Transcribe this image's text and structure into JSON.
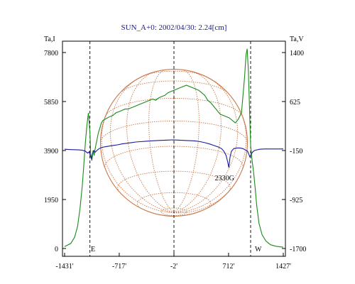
{
  "chart_data": {
    "type": "line",
    "title": "SUN_A+0: 2002/04/30: 2.24[cm]",
    "left_axis": {
      "label": "Ta,I",
      "ylim": [
        0,
        7800
      ],
      "ticks": [
        "7800",
        "5850",
        "3900",
        "1950",
        "0"
      ],
      "tick_values": [
        7800,
        5850,
        3900,
        1950,
        0
      ]
    },
    "right_axis": {
      "label": "Ta,V",
      "ylim": [
        -1700,
        1400
      ],
      "ticks": [
        "1400",
        "625",
        "-150",
        "-925",
        "-1700"
      ],
      "tick_values": [
        1400,
        625,
        -150,
        -925,
        -1700
      ]
    },
    "x_axis": {
      "xlim": [
        -1431,
        1427
      ],
      "ticks": [
        "-1431'",
        "-717'",
        "-2'",
        "712'",
        "1427'"
      ],
      "tick_values": [
        -1431,
        -717,
        -2,
        712,
        1427
      ]
    },
    "markers": {
      "east": "E",
      "west": "W"
    },
    "annotation": {
      "text": "2330G",
      "x": 690,
      "y_v": -420
    },
    "guides_x": [
      -1100,
      -2,
      1000
    ],
    "disk_radius": 960,
    "series": [
      {
        "axis": "left",
        "color": "#1a8a1a",
        "x": [
          -1431,
          -1350,
          -1300,
          -1260,
          -1230,
          -1200,
          -1180,
          -1160,
          -1140,
          -1120,
          -1100,
          -1090,
          -1075,
          -1060,
          -1045,
          -1030,
          -1010,
          -990,
          -970,
          -950,
          -930,
          -900,
          -870,
          -840,
          -800,
          -760,
          -720,
          -680,
          -640,
          -600,
          -560,
          -520,
          -480,
          -440,
          -400,
          -360,
          -320,
          -280,
          -240,
          -200,
          -160,
          -120,
          -80,
          -40,
          0,
          40,
          80,
          120,
          160,
          200,
          240,
          280,
          320,
          360,
          400,
          440,
          480,
          520,
          560,
          600,
          640,
          680,
          720,
          760,
          800,
          840,
          880,
          920,
          940,
          955,
          970,
          985,
          1000,
          1020,
          1040,
          1060,
          1080,
          1110,
          1150,
          1200,
          1260,
          1330,
          1427
        ],
        "y": [
          80,
          200,
          450,
          900,
          1600,
          2500,
          3300,
          4200,
          4900,
          5400,
          4600,
          3800,
          3500,
          3900,
          3700,
          4000,
          4300,
          4600,
          4800,
          5000,
          5100,
          5150,
          5200,
          5250,
          5300,
          5400,
          5450,
          5500,
          5550,
          5550,
          5600,
          5650,
          5700,
          5750,
          5800,
          5850,
          5900,
          5950,
          5900,
          6000,
          6050,
          6100,
          6200,
          6250,
          6300,
          6350,
          6400,
          6450,
          6500,
          6450,
          6400,
          6350,
          6300,
          6200,
          6100,
          5900,
          5800,
          5650,
          5500,
          5350,
          5300,
          5250,
          5200,
          5100,
          5000,
          5150,
          5400,
          6800,
          7700,
          7950,
          7100,
          5600,
          4100,
          3500,
          3000,
          2400,
          1700,
          1000,
          550,
          300,
          150,
          90,
          50
        ]
      },
      {
        "axis": "right",
        "color": "#1a1a9c",
        "x": [
          -1431,
          -1350,
          -1250,
          -1200,
          -1160,
          -1130,
          -1110,
          -1095,
          -1080,
          -1065,
          -1050,
          -1035,
          -1010,
          -980,
          -940,
          -900,
          -850,
          -800,
          -740,
          -680,
          -620,
          -560,
          -500,
          -440,
          -380,
          -320,
          -260,
          -200,
          -140,
          -80,
          -20,
          40,
          100,
          160,
          220,
          280,
          340,
          400,
          460,
          520,
          580,
          620,
          650,
          680,
          700,
          715,
          730,
          750,
          780,
          820,
          860,
          900,
          930,
          960,
          990,
          1010,
          1030,
          1050,
          1080,
          1120,
          1180,
          1260,
          1350,
          1427
        ],
        "y": [
          -130,
          -135,
          -140,
          -145,
          -160,
          -190,
          -170,
          -230,
          -280,
          -200,
          -150,
          -180,
          -150,
          -120,
          -100,
          -90,
          -80,
          -70,
          -60,
          -45,
          -35,
          -25,
          -15,
          -10,
          -5,
          0,
          5,
          10,
          12,
          15,
          18,
          15,
          12,
          8,
          5,
          0,
          -10,
          -25,
          -45,
          -70,
          -95,
          -120,
          -160,
          -230,
          -330,
          -420,
          -260,
          -160,
          -120,
          -110,
          -110,
          -120,
          -140,
          -160,
          -250,
          -200,
          -170,
          -150,
          -140,
          -130,
          -125,
          -125,
          -125,
          -125
        ]
      }
    ]
  },
  "colors": {
    "grid": "#c8784a",
    "frame": "#000000"
  }
}
